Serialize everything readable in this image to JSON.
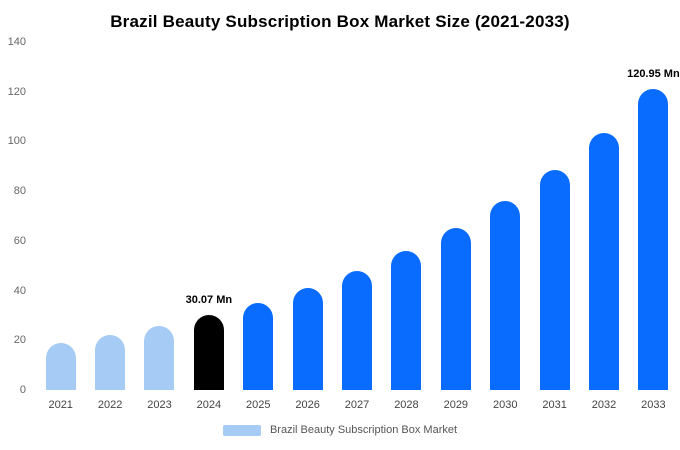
{
  "chart_data": {
    "type": "bar",
    "title": "Brazil Beauty Subscription Box Market Size (2021-2033)",
    "categories": [
      "2021",
      "2022",
      "2023",
      "2024",
      "2025",
      "2026",
      "2027",
      "2028",
      "2029",
      "2030",
      "2031",
      "2032",
      "2033"
    ],
    "values": [
      18.9,
      22.1,
      25.8,
      30.07,
      35.1,
      41.0,
      47.8,
      55.8,
      65.1,
      76.0,
      88.7,
      103.5,
      120.95
    ],
    "unit": "Mn",
    "xlabel": "",
    "ylabel": "",
    "ylim": [
      0,
      140
    ],
    "yticks": [
      0,
      20,
      40,
      60,
      80,
      100,
      120,
      140
    ],
    "grid": false,
    "bar_colors": [
      "#a6cbf5",
      "#a6cbf5",
      "#a6cbf5",
      "#000000",
      "#0a6cff",
      "#0a6cff",
      "#0a6cff",
      "#0a6cff",
      "#0a6cff",
      "#0a6cff",
      "#0a6cff",
      "#0a6cff",
      "#0a6cff"
    ],
    "annotations": [
      {
        "index": 3,
        "text": "30.07 Mn"
      },
      {
        "index": 12,
        "text": "120.95 Mn"
      }
    ],
    "legend_position": "bottom",
    "legend": [
      {
        "label": "Brazil Beauty Subscription Box Market",
        "color": "#a6cbf5"
      }
    ]
  }
}
